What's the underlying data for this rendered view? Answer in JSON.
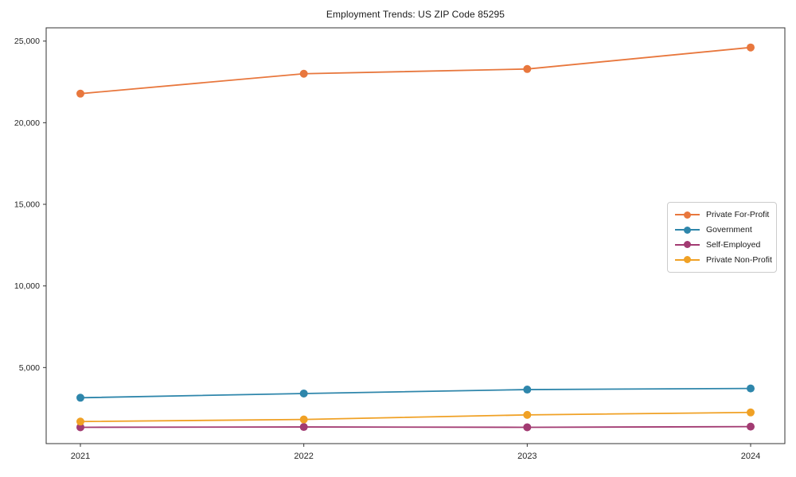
{
  "chart_data": {
    "type": "line",
    "title": "Employment Trends: US ZIP Code 85295",
    "xlabel": "",
    "ylabel": "",
    "categories": [
      "2021",
      "2022",
      "2023",
      "2024"
    ],
    "series": [
      {
        "name": "Private For-Profit",
        "color": "#E8773D",
        "values": [
          21780,
          23000,
          23290,
          24610
        ]
      },
      {
        "name": "Government",
        "color": "#2E86AB",
        "values": [
          3150,
          3410,
          3650,
          3720
        ]
      },
      {
        "name": "Self-Employed",
        "color": "#A23B72",
        "values": [
          1340,
          1360,
          1340,
          1380
        ]
      },
      {
        "name": "Private Non-Profit",
        "color": "#F0A125",
        "values": [
          1690,
          1820,
          2100,
          2250
        ]
      }
    ],
    "yticks": [
      5000,
      10000,
      15000,
      20000,
      25000
    ],
    "ytick_labels": [
      "5,000",
      "10,000",
      "15,000",
      "20,000",
      "25,000"
    ],
    "ylim": [
      340,
      25813
    ],
    "grid": false,
    "legend_position": "center-right",
    "marker": "circle",
    "frame_color": "#333333",
    "tick_label_color": "#262626"
  }
}
